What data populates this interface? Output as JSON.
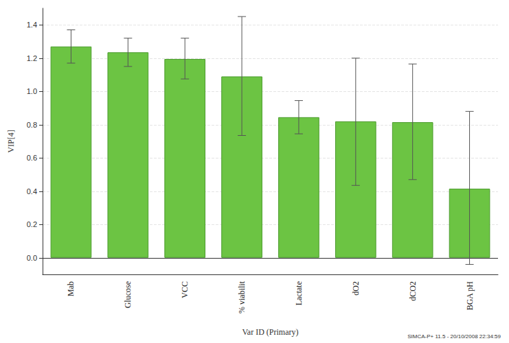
{
  "chart_data": {
    "type": "bar",
    "ylabel": "VIP[4]",
    "xlabel": "Var ID (Primary)",
    "annotation": "SIMCA-P+ 11.5 - 20/10/2008 22:34:59",
    "categories": [
      "Mab",
      "Glucose",
      "VCC",
      "% viabilit",
      "Lactate",
      "dO2",
      "dCO2",
      "BGA pH"
    ],
    "values": [
      1.27,
      1.235,
      1.195,
      1.09,
      0.845,
      0.82,
      0.815,
      0.415
    ],
    "error_low": [
      1.17,
      1.15,
      1.075,
      0.735,
      0.745,
      0.435,
      0.47,
      -0.04
    ],
    "error_high": [
      1.37,
      1.32,
      1.32,
      1.45,
      0.945,
      1.2,
      1.165,
      0.88
    ],
    "color": "#6cc443",
    "ylim": [
      -0.1,
      1.5
    ],
    "yticks": [
      {
        "value": 0,
        "label": "0.0"
      },
      0.2,
      0.4,
      0.6,
      0.8,
      {
        "value": 1,
        "label": "1.0"
      },
      1.2,
      1.4
    ],
    "grid": true
  }
}
